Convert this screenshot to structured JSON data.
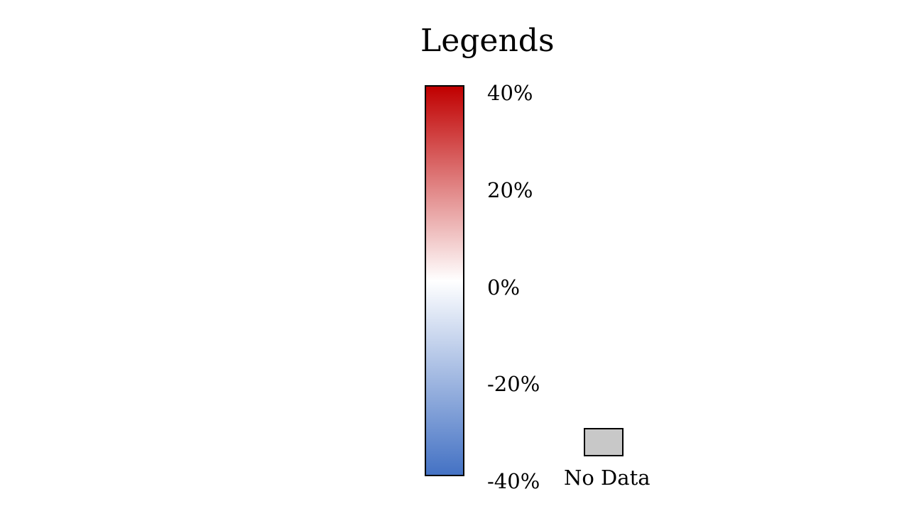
{
  "chart_data": {
    "type": "heatmap",
    "title": "Legends",
    "colorbar": {
      "min": -40,
      "max": 40,
      "unit": "%",
      "ticks": [
        40,
        20,
        0,
        -20,
        -40
      ],
      "tick_labels": [
        "40%",
        "20%",
        "0%",
        "-20%",
        "-40%"
      ],
      "colors": {
        "max": "#c00000",
        "mid": "#ffffff",
        "min": "#4472c4"
      }
    },
    "no_data": {
      "label": "No Data",
      "color": "#c8c8c8"
    }
  }
}
